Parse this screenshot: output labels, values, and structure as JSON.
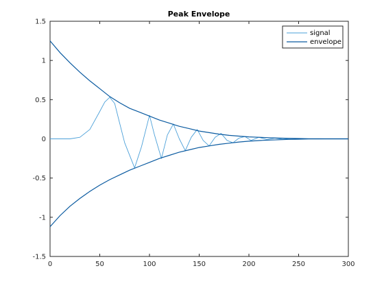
{
  "chart_data": {
    "type": "line",
    "title": "Peak Envelope",
    "xlabel": "",
    "ylabel": "",
    "xlim": [
      0,
      300
    ],
    "ylim": [
      -1.5,
      1.5
    ],
    "x_ticks": [
      0,
      50,
      100,
      150,
      200,
      250,
      300
    ],
    "y_ticks": [
      -1.5,
      -1,
      -0.5,
      0,
      0.5,
      1,
      1.5
    ],
    "x_tick_labels": [
      "0",
      "50",
      "100",
      "150",
      "200",
      "250",
      "300"
    ],
    "y_tick_labels": [
      "-1.5",
      "-1",
      "-0.5",
      "0",
      "0.5",
      "1",
      "1.5"
    ],
    "grid": false,
    "legend_position": "top-right",
    "series": [
      {
        "name": "signal",
        "color": "#4a9fd8",
        "x": [
          0,
          20,
          30,
          40,
          50,
          55,
          60,
          65,
          70,
          75,
          85,
          92,
          100,
          105,
          112,
          118,
          124,
          130,
          136,
          142,
          148,
          154,
          160,
          166,
          172,
          178,
          184,
          190,
          196,
          202,
          210,
          218,
          226,
          234,
          242,
          250,
          255,
          260,
          300
        ],
        "y": [
          0,
          0,
          0.02,
          0.12,
          0.35,
          0.47,
          0.53,
          0.45,
          0.2,
          -0.05,
          -0.37,
          -0.1,
          0.3,
          0.05,
          -0.25,
          0.05,
          0.19,
          0,
          -0.15,
          0.02,
          0.12,
          -0.02,
          -0.09,
          0.02,
          0.07,
          -0.02,
          -0.05,
          0.01,
          0.03,
          -0.02,
          0.02,
          -0.01,
          0.01,
          -0.005,
          0.005,
          0,
          0,
          0,
          0
        ]
      },
      {
        "name": "envelope",
        "color": "#0a5aa0",
        "x": [
          0,
          10,
          20,
          30,
          40,
          50,
          60,
          70,
          80,
          90,
          100,
          110,
          120,
          130,
          140,
          150,
          160,
          170,
          180,
          190,
          200,
          210,
          220,
          230,
          240,
          250,
          260,
          270,
          280,
          290,
          300
        ],
        "y_upper": [
          1.25,
          1.1,
          0.97,
          0.85,
          0.74,
          0.64,
          0.54,
          0.46,
          0.39,
          0.34,
          0.29,
          0.24,
          0.2,
          0.16,
          0.13,
          0.1,
          0.08,
          0.06,
          0.045,
          0.035,
          0.025,
          0.02,
          0.015,
          0.01,
          0.007,
          0.004,
          0.002,
          0.001,
          0,
          0,
          0
        ],
        "y_lower": [
          -1.12,
          -0.98,
          -0.86,
          -0.76,
          -0.67,
          -0.59,
          -0.52,
          -0.46,
          -0.4,
          -0.35,
          -0.3,
          -0.25,
          -0.21,
          -0.17,
          -0.14,
          -0.11,
          -0.09,
          -0.07,
          -0.055,
          -0.04,
          -0.03,
          -0.022,
          -0.016,
          -0.011,
          -0.007,
          -0.004,
          -0.002,
          -0.001,
          0,
          0,
          0
        ]
      }
    ]
  }
}
